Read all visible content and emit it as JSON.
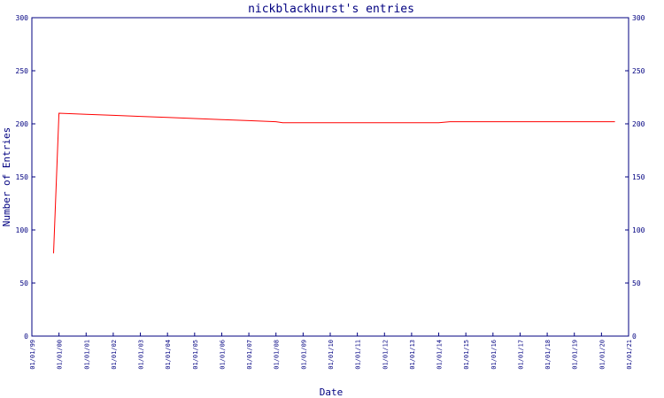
{
  "chart_data": {
    "type": "line",
    "title": "nickblackhurst's entries",
    "xlabel": "Date",
    "ylabel": "Number of Entries",
    "ylim": [
      0,
      300
    ],
    "y_ticks": [
      0,
      50,
      100,
      150,
      200,
      250,
      300
    ],
    "x_range": [
      "2000-01-01",
      "2021-01-01"
    ],
    "x_tick_labels": [
      "01/01/99",
      "01/01/00",
      "01/01/01",
      "01/01/02",
      "01/01/03",
      "01/01/04",
      "01/01/05",
      "01/01/06",
      "01/01/07",
      "01/01/08",
      "01/01/09",
      "01/01/10",
      "01/01/11",
      "01/01/12",
      "01/01/13",
      "01/01/14",
      "01/01/15",
      "01/01/16",
      "01/01/17",
      "01/01/18",
      "01/01/19",
      "01/01/20",
      "01/01/21"
    ],
    "right_axis": true,
    "grid": false,
    "series": [
      {
        "color": "#ff0000",
        "x": [
          "1999-10-20",
          "2000-01-01",
          "2001-01-01",
          "2002-01-01",
          "2003-01-01",
          "2004-01-01",
          "2005-01-01",
          "2006-01-01",
          "2007-01-01",
          "2008-01-01",
          "2008-04-01",
          "2009-01-01",
          "2010-01-01",
          "2011-01-01",
          "2012-01-01",
          "2013-01-01",
          "2014-01-01",
          "2014-06-01",
          "2015-01-01",
          "2016-01-01",
          "2017-01-01",
          "2018-01-01",
          "2019-01-01",
          "2020-01-01",
          "2020-07-01"
        ],
        "y": [
          78,
          210,
          209,
          208,
          207,
          206,
          205,
          204,
          203,
          202,
          201,
          201,
          201,
          201,
          201,
          201,
          201,
          202,
          202,
          202,
          202,
          202,
          202,
          202,
          202
        ]
      }
    ]
  },
  "colors": {
    "axis": "#000080",
    "line": "#ff0000",
    "background": "#ffffff"
  }
}
